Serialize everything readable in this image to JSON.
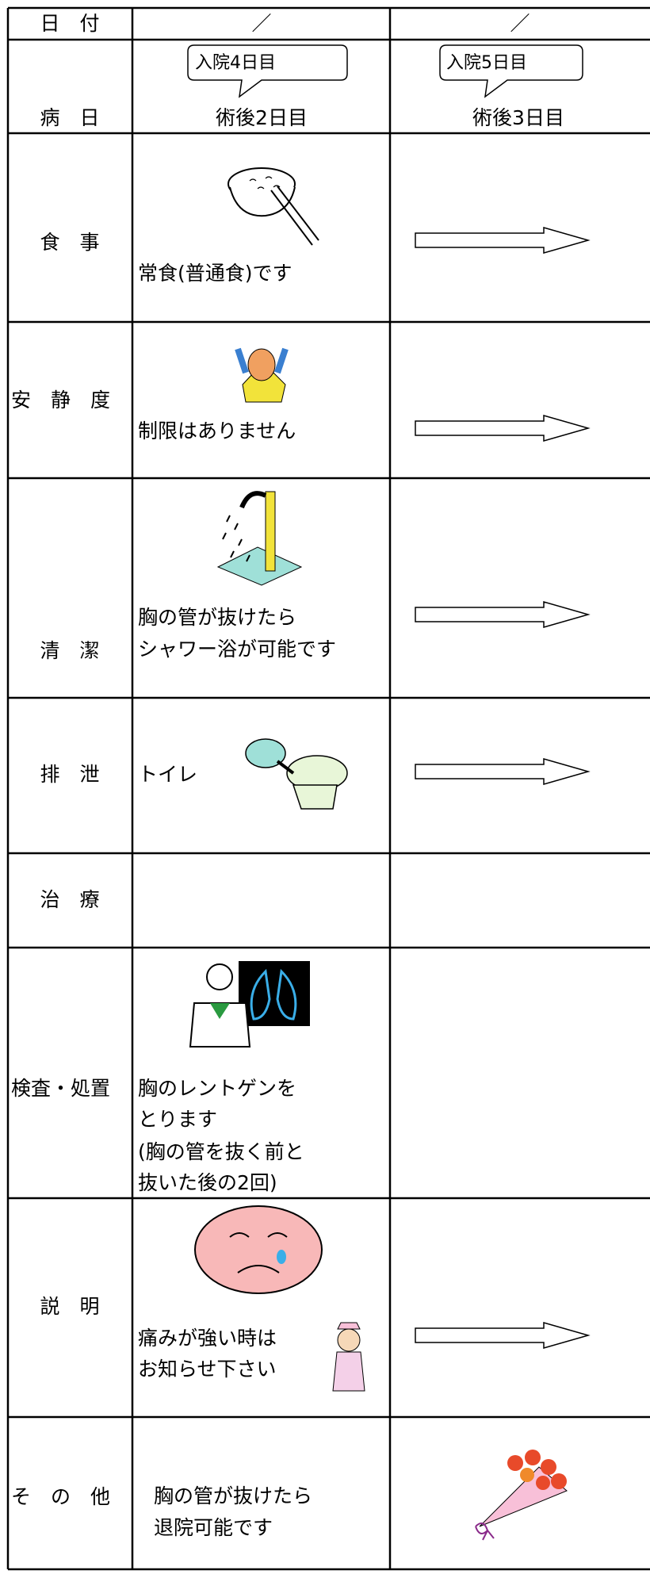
{
  "header": {
    "date_label": "日　付",
    "date_marks": [
      "／",
      "／"
    ],
    "day_label": "病　日",
    "admission": [
      "入院4日目",
      "入院5日目"
    ],
    "postop": [
      "術後2日目",
      "術後3日目"
    ]
  },
  "rows": [
    {
      "label": "食　事",
      "text": [
        "常食(普通食)です"
      ]
    },
    {
      "label": "安　静　度",
      "text": [
        "制限はありません"
      ]
    },
    {
      "label": "清　潔",
      "text": [
        "胸の管が抜けたら",
        "シャワー浴が可能です"
      ]
    },
    {
      "label": "排　泄",
      "text": [
        "トイレ"
      ]
    },
    {
      "label": "治　療",
      "text": []
    },
    {
      "label": "検査・処置",
      "text": [
        "胸のレントゲンを",
        "とります",
        "(胸の管を抜く前と",
        "抜いた後の2回)"
      ]
    },
    {
      "label": "説　明",
      "text": [
        "痛みが強い時は",
        "お知らせ下さい"
      ]
    },
    {
      "label": "そ　の　他",
      "text": [
        "胸の管が抜けたら",
        "退院可能です"
      ]
    }
  ]
}
